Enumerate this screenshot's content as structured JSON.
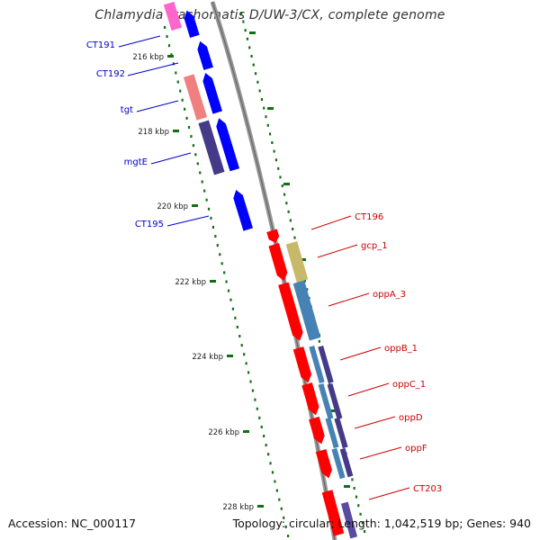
{
  "title": "Chlamydia trachomatis D/UW-3/CX, complete genome",
  "footer": {
    "accession": "Accession: NC_000117",
    "stats": "Topology: circular; Length: 1,042,519 bp; Genes: 940"
  },
  "colors": {
    "forward_gene": "#ff0000",
    "reverse_gene": "#0000ff",
    "forward_label": "#cc0000",
    "reverse_label": "#0000cc",
    "tick": "#107010",
    "backbone": "#888888"
  },
  "scale_labels": [
    {
      "kbp": 216,
      "text": "216 kbp"
    },
    {
      "kbp": 218,
      "text": "218 kbp"
    },
    {
      "kbp": 220,
      "text": "220 kbp"
    },
    {
      "kbp": 222,
      "text": "222 kbp"
    },
    {
      "kbp": 224,
      "text": "224 kbp"
    },
    {
      "kbp": 226,
      "text": "226 kbp"
    },
    {
      "kbp": 228,
      "text": "228 kbp"
    }
  ],
  "genes_reverse": [
    {
      "label": "CT191"
    },
    {
      "label": "CT192"
    },
    {
      "label": "tgt"
    },
    {
      "label": "mgtE"
    },
    {
      "label": "CT195"
    }
  ],
  "genes_forward": [
    {
      "label": "CT196"
    },
    {
      "label": "gcp_1"
    },
    {
      "label": "oppA_3"
    },
    {
      "label": "oppB_1"
    },
    {
      "label": "oppC_1"
    },
    {
      "label": "oppD"
    },
    {
      "label": "oppF"
    },
    {
      "label": "CT203"
    }
  ]
}
